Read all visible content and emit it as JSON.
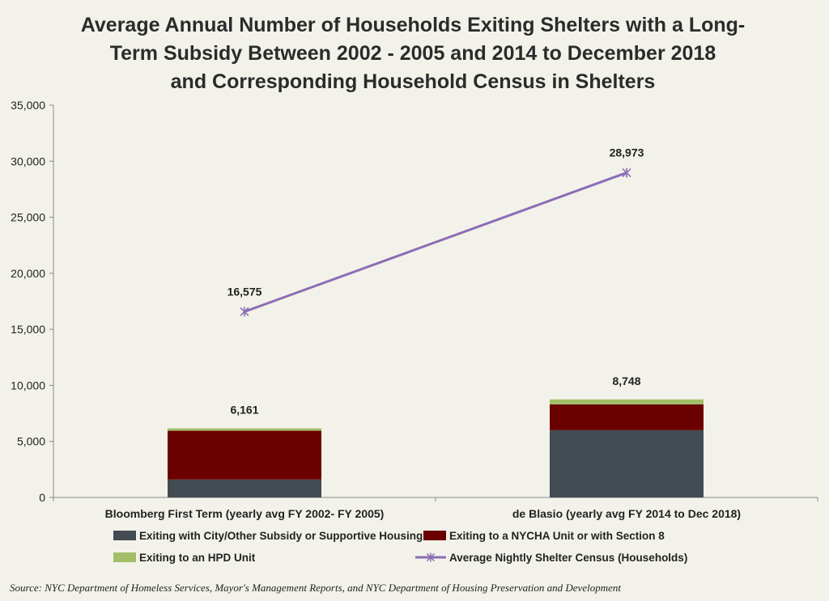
{
  "chart_data": {
    "type": "bar",
    "stacked": true,
    "title": "Average Annual Number of Households Exiting Shelters with a Long-Term Subsidy Between 2002 - 2005 and 2014 to December 2018 and Corresponding Household Census in Shelters",
    "title_lines": [
      "Average Annual Number of Households Exiting Shelters with a Long-",
      "Term Subsidy Between 2002 - 2005 and 2014 to December 2018",
      "and Corresponding Household Census in Shelters"
    ],
    "categories": [
      "Bloomberg First Term (yearly avg FY 2002- FY 2005)",
      "de Blasio (yearly avg FY 2014 to Dec 2018)"
    ],
    "series": [
      {
        "name": "Exiting with City/Other Subsidy or Supportive Housing",
        "type": "bar",
        "color": "#434c53",
        "values": [
          1600,
          6000
        ]
      },
      {
        "name": "Exiting to a NYCHA Unit or with Section 8",
        "type": "bar",
        "color": "#6b0000",
        "values": [
          4350,
          2300
        ]
      },
      {
        "name": "Exiting to an HPD Unit",
        "type": "bar",
        "color": "#a3be69",
        "values": [
          211,
          448
        ]
      },
      {
        "name": "Average Nightly Shelter Census (Households)",
        "type": "line",
        "color": "#8b6db5",
        "marker": "asterisk",
        "values": [
          16575,
          28973
        ]
      }
    ],
    "bar_totals": [
      "6,161",
      "8,748"
    ],
    "line_labels": [
      "16,575",
      "28,973"
    ],
    "yticks": [
      "0",
      "5,000",
      "10,000",
      "15,000",
      "20,000",
      "25,000",
      "30,000",
      "35,000"
    ],
    "ylim": [
      0,
      35000
    ],
    "xlabel": "",
    "ylabel": "",
    "grid": false,
    "legend_position": "bottom"
  },
  "source": "Source: NYC Department of Homeless Services, Mayor's Management Reports, and NYC Department of Housing Preservation and Development",
  "colors": {
    "background": "#f3f2ea",
    "axis": "#8a8a8a"
  }
}
